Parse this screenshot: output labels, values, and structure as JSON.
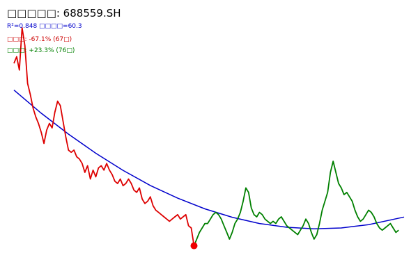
{
  "chart_data": {
    "type": "line",
    "title": "□□□□□: 688559.SH",
    "stats_line": "R²=0.848  □□□□=60.3",
    "decline_label": "□□□: -67.1% (67□)",
    "rise_label": "□□□: +23.3% (76□)",
    "xlim": [
      0,
      143
    ],
    "ylim": [
      0,
      100
    ],
    "colors": {
      "decline": "#dd0000",
      "rise": "#008000",
      "fit": "#0000cc",
      "marker": "#ee0000",
      "title": "#000000"
    },
    "series": [
      {
        "key": "decline",
        "values": [
          84,
          87,
          81,
          100,
          92,
          75,
          70,
          64,
          60,
          57,
          53,
          48,
          54,
          57,
          55,
          62,
          67,
          65,
          58,
          51,
          45,
          44,
          45,
          42,
          41,
          39,
          35,
          38,
          32,
          36,
          33,
          37,
          38,
          36,
          39,
          36,
          34,
          31,
          30,
          32,
          29,
          30,
          32,
          30,
          27,
          26,
          28,
          23,
          21,
          22,
          24,
          20,
          18,
          17,
          16,
          15,
          14,
          13,
          14,
          15,
          16,
          14,
          15,
          16,
          11,
          10,
          2
        ]
      },
      {
        "key": "rise",
        "values": [
          2,
          5,
          8,
          10,
          12,
          12,
          14,
          16,
          17,
          16,
          14,
          11,
          8,
          5,
          8,
          12,
          14,
          17,
          22,
          28,
          26,
          19,
          16,
          15,
          17,
          16,
          14,
          13,
          12,
          13,
          12,
          14,
          15,
          13,
          11,
          10,
          9,
          8,
          7,
          9,
          11,
          14,
          12,
          8,
          5,
          7,
          12,
          18,
          22,
          26,
          35,
          40,
          35,
          30,
          28,
          25,
          26,
          24,
          22,
          18,
          15,
          13,
          14,
          16,
          18,
          17,
          15,
          12,
          10,
          9,
          10,
          11,
          12,
          10,
          8,
          9
        ]
      }
    ],
    "fit_curve": {
      "x": [
        0,
        10,
        20,
        30,
        40,
        50,
        60,
        70,
        80,
        90,
        100,
        110,
        120,
        130,
        143
      ],
      "y": [
        72,
        61.6,
        52.2,
        43.6,
        35.9,
        29.1,
        23.4,
        18.6,
        14.8,
        12.0,
        10.3,
        9.6,
        10.0,
        11.5,
        14.9
      ]
    },
    "marker": {
      "x": 66,
      "y": 2
    }
  }
}
